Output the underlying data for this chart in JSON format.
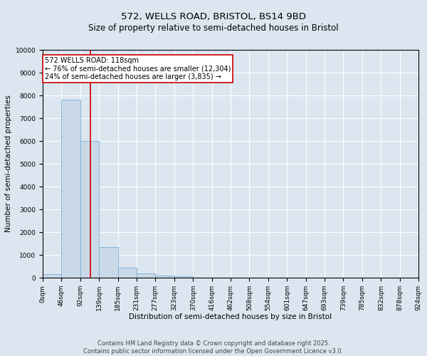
{
  "title_line1": "572, WELLS ROAD, BRISTOL, BS14 9BD",
  "title_line2": "Size of property relative to semi-detached houses in Bristol",
  "xlabel": "Distribution of semi-detached houses by size in Bristol",
  "ylabel": "Number of semi-detached properties",
  "bin_edges": [
    0,
    46,
    92,
    139,
    185,
    231,
    277,
    323,
    370,
    416,
    462,
    508,
    554,
    601,
    647,
    693,
    739,
    785,
    832,
    878,
    924
  ],
  "bar_heights": [
    150,
    7800,
    6000,
    1350,
    450,
    200,
    100,
    50,
    0,
    0,
    0,
    0,
    0,
    0,
    0,
    0,
    0,
    0,
    0,
    0
  ],
  "bar_color": "#c9d9e8",
  "bar_edge_color": "#7bafd4",
  "property_size": 118,
  "red_line_color": "#cc0000",
  "annotation_text": "572 WELLS ROAD: 118sqm\n← 76% of semi-detached houses are smaller (12,304)\n24% of semi-detached houses are larger (3,835) →",
  "annotation_box_color": "#ffffff",
  "annotation_box_edge_color": "#cc0000",
  "ylim": [
    0,
    10000
  ],
  "yticks": [
    0,
    1000,
    2000,
    3000,
    4000,
    5000,
    6000,
    7000,
    8000,
    9000,
    10000
  ],
  "tick_labels": [
    "0sqm",
    "46sqm",
    "92sqm",
    "139sqm",
    "185sqm",
    "231sqm",
    "277sqm",
    "323sqm",
    "370sqm",
    "416sqm",
    "462sqm",
    "508sqm",
    "554sqm",
    "601sqm",
    "647sqm",
    "693sqm",
    "739sqm",
    "785sqm",
    "832sqm",
    "878sqm",
    "924sqm"
  ],
  "footer_text": "Contains HM Land Registry data © Crown copyright and database right 2025.\nContains public sector information licensed under the Open Government Licence v3.0.",
  "background_color": "#dce6f0",
  "plot_background_color": "#dce6f0",
  "grid_color": "#ffffff",
  "title_fontsize": 9.5,
  "subtitle_fontsize": 8.5,
  "axis_label_fontsize": 7.5,
  "tick_fontsize": 6.5,
  "annotation_fontsize": 7,
  "footer_fontsize": 6
}
